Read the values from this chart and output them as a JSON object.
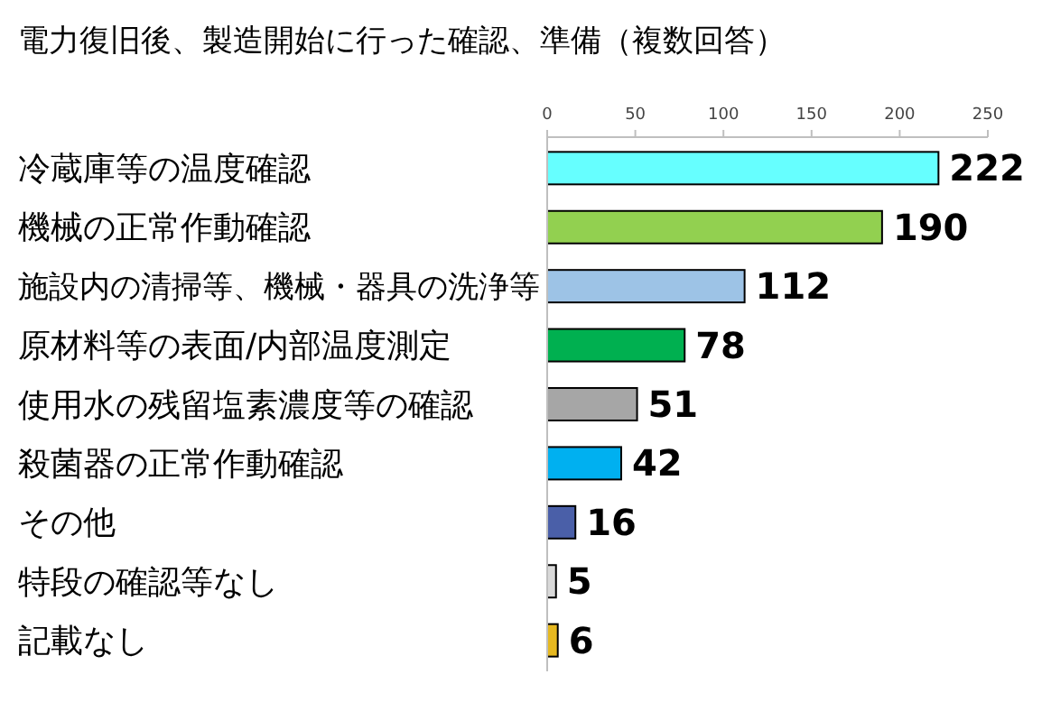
{
  "chart_data": {
    "type": "bar",
    "orientation": "horizontal",
    "title": "電力復旧後、製造開始に行った確認、準備（複数回答）",
    "categories": [
      "冷蔵庫等の温度確認",
      "機械の正常作動確認",
      "施設内の清掃等、機械・器具の洗浄等",
      "原材料等の表面/内部温度測定",
      "使用水の残留塩素濃度等の確認",
      "殺菌器の正常作動確認",
      "その他",
      "特段の確認等なし",
      "記載なし"
    ],
    "values": [
      222,
      190,
      112,
      78,
      51,
      42,
      16,
      5,
      6
    ],
    "colors": [
      "#66ffff",
      "#92d050",
      "#9dc3e6",
      "#00b050",
      "#a6a6a6",
      "#00b0f0",
      "#4a5fa8",
      "#d9d9d9",
      "#e6b820"
    ],
    "xlim": [
      0,
      250
    ],
    "xticks": [
      0,
      50,
      100,
      150,
      200,
      250
    ],
    "data_labels": true,
    "grid": false
  }
}
